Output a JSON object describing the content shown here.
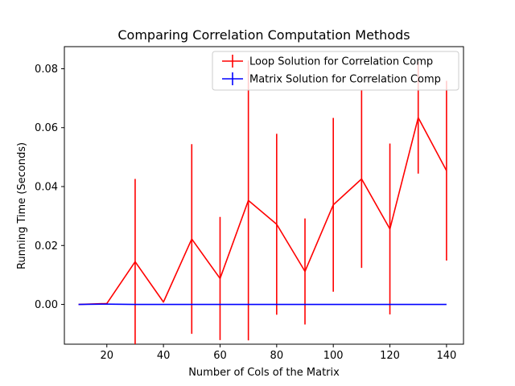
{
  "chart_data": {
    "type": "line",
    "title": "Comparing Correlation Computation Methods",
    "xlabel": "Number of Cols of the Matrix",
    "ylabel": "Running Time (Seconds)",
    "xlim": [
      5,
      146
    ],
    "ylim": [
      -0.0135,
      0.0875
    ],
    "grid": false,
    "legend_position": "top-right",
    "x_ticks": [
      20,
      40,
      60,
      80,
      100,
      120,
      140
    ],
    "x_tick_labels": [
      "20",
      "40",
      "60",
      "80",
      "100",
      "120",
      "140"
    ],
    "y_ticks": [
      0.0,
      0.02,
      0.04,
      0.06,
      0.08
    ],
    "y_tick_labels": [
      "0.00",
      "0.02",
      "0.04",
      "0.06",
      "0.08"
    ],
    "x": [
      10,
      20,
      30,
      40,
      50,
      60,
      70,
      80,
      90,
      100,
      110,
      120,
      130,
      140
    ],
    "series": [
      {
        "name": "Loop Solution for Correlation Comp",
        "color": "#ff0000",
        "values": [
          0.0,
          0.0003,
          0.0145,
          0.0008,
          0.0222,
          0.0088,
          0.0353,
          0.0272,
          0.0112,
          0.0338,
          0.0426,
          0.0256,
          0.0634,
          0.0454
        ],
        "errors": [
          0.0,
          0.0,
          0.0281,
          0.0,
          0.0322,
          0.0209,
          0.0475,
          0.0307,
          0.018,
          0.0295,
          0.0302,
          0.029,
          0.019,
          0.0305
        ]
      },
      {
        "name": "Matrix Solution for Correlation Comp",
        "color": "#0000ff",
        "values": [
          0.0,
          0.0001,
          0.0,
          0.0,
          0.0,
          0.0,
          0.0,
          0.0,
          0.0,
          0.0,
          0.0,
          0.0,
          0.0,
          0.0
        ],
        "errors": [
          0.0,
          0.0,
          0.0,
          0.0,
          0.0,
          0.0,
          0.0,
          0.0,
          0.0,
          0.0,
          0.0,
          0.0,
          0.0,
          0.0
        ]
      }
    ]
  }
}
